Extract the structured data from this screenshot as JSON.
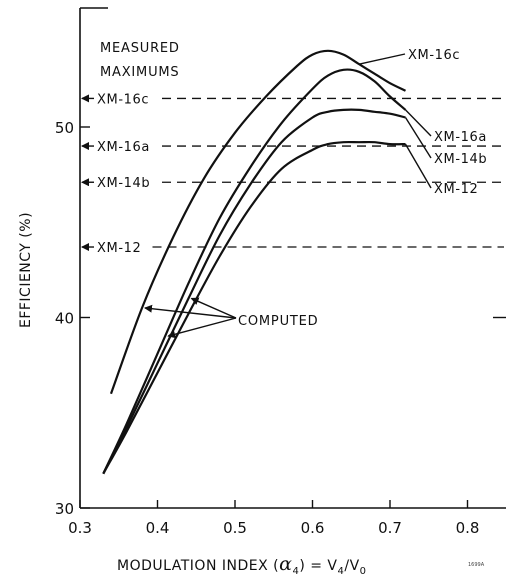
{
  "chart_data": {
    "type": "line",
    "title": "",
    "xlabel_parts": {
      "prefix": "MODULATION INDEX (",
      "symbol": "α",
      "sub": "4",
      "suffix": ") = V",
      "sub2": "4",
      "slash": "/V",
      "sub3": "0"
    },
    "ylabel": "EFFICIENCY (%)",
    "xlim": [
      0.3,
      0.85
    ],
    "ylim": [
      30,
      55
    ],
    "x_ticks": [
      0.3,
      0.4,
      0.5,
      0.6,
      0.7,
      0.8
    ],
    "x_tick_labels": [
      "0.3",
      "0.4",
      "0.5",
      "0.6",
      "0.7",
      "0.8"
    ],
    "y_ticks": [
      30,
      40,
      50
    ],
    "y_tick_labels": [
      "30",
      "40",
      "50"
    ],
    "grid": false,
    "annotation_measured": [
      "MEASURED",
      "MAXIMUMS"
    ],
    "annotation_computed": "COMPUTED",
    "footnote": "1699A",
    "measured_maximums": [
      {
        "name": "XM-16c",
        "value": 51.5
      },
      {
        "name": "XM-16a",
        "value": 49.0
      },
      {
        "name": "XM-14b",
        "value": 47.1
      },
      {
        "name": "XM-12",
        "value": 43.7
      }
    ],
    "series": [
      {
        "name": "XM-16c",
        "x": [
          0.34,
          0.38,
          0.42,
          0.46,
          0.5,
          0.54,
          0.58,
          0.6,
          0.62,
          0.64,
          0.66,
          0.68,
          0.7,
          0.72
        ],
        "y": [
          36.0,
          40.5,
          44.2,
          47.3,
          49.7,
          51.6,
          53.2,
          53.8,
          54.0,
          53.8,
          53.3,
          52.8,
          52.3,
          51.9
        ]
      },
      {
        "name": "XM-16a",
        "x": [
          0.33,
          0.36,
          0.4,
          0.44,
          0.48,
          0.52,
          0.56,
          0.6,
          0.62,
          0.64,
          0.66,
          0.68,
          0.7,
          0.72
        ],
        "y": [
          31.8,
          34.4,
          38.1,
          41.8,
          45.2,
          47.9,
          50.2,
          52.0,
          52.7,
          53.0,
          52.9,
          52.4,
          51.6,
          50.9
        ]
      },
      {
        "name": "XM-14b",
        "x": [
          0.33,
          0.36,
          0.4,
          0.44,
          0.48,
          0.52,
          0.56,
          0.6,
          0.62,
          0.64,
          0.66,
          0.68,
          0.7,
          0.72
        ],
        "y": [
          31.8,
          34.2,
          37.6,
          41.0,
          44.3,
          47.0,
          49.2,
          50.5,
          50.8,
          50.9,
          50.9,
          50.8,
          50.7,
          50.5
        ]
      },
      {
        "name": "XM-12",
        "x": [
          0.33,
          0.36,
          0.4,
          0.44,
          0.48,
          0.52,
          0.56,
          0.6,
          0.62,
          0.64,
          0.66,
          0.68,
          0.7,
          0.72
        ],
        "y": [
          31.8,
          34.0,
          37.1,
          40.2,
          43.2,
          45.8,
          47.8,
          48.8,
          49.1,
          49.2,
          49.2,
          49.2,
          49.1,
          49.1
        ]
      }
    ],
    "computed_arrow_targets": [
      {
        "series": "XM-16c",
        "x": 0.38
      },
      {
        "series": "XM-16a",
        "x": 0.41
      },
      {
        "series": "XM-14b",
        "x": 0.44
      }
    ]
  }
}
